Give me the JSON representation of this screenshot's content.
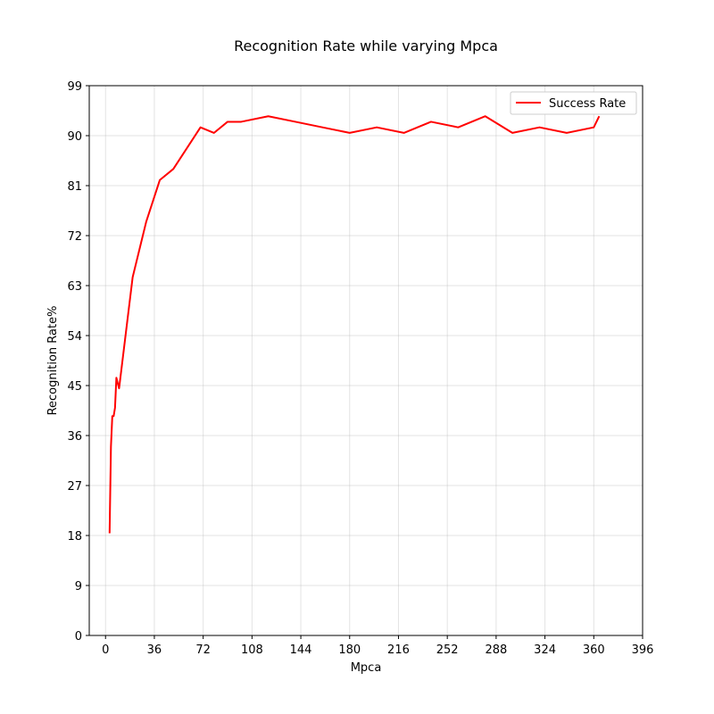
{
  "chart_data": {
    "type": "line",
    "title": "Recognition Rate while varying Mpca",
    "xlabel": "Mpca",
    "ylabel": "Recognition Rate%",
    "xlim": [
      -12,
      396
    ],
    "ylim": [
      0,
      99
    ],
    "xticks": [
      0,
      36,
      72,
      108,
      144,
      180,
      216,
      252,
      288,
      324,
      360,
      396
    ],
    "yticks": [
      0,
      9,
      18,
      27,
      36,
      45,
      54,
      63,
      72,
      81,
      90,
      99
    ],
    "grid": true,
    "legend_position": "top-right",
    "series": [
      {
        "name": "Success Rate",
        "color": "#ff0000",
        "x": [
          3,
          4,
          5,
          6,
          7,
          8,
          10,
          20,
          30,
          40,
          50,
          70,
          80,
          90,
          100,
          120,
          140,
          160,
          180,
          200,
          220,
          240,
          260,
          280,
          300,
          320,
          340,
          360,
          364
        ],
        "y": [
          18.4,
          34,
          39.5,
          39.5,
          41,
          46.4,
          44.5,
          64.5,
          74.5,
          82,
          84,
          91.5,
          90.5,
          92.5,
          92.5,
          93.5,
          92.5,
          91.5,
          90.5,
          91.5,
          90.5,
          92.5,
          91.5,
          93.5,
          90.5,
          91.5,
          90.5,
          91.5,
          93.5
        ]
      }
    ]
  }
}
